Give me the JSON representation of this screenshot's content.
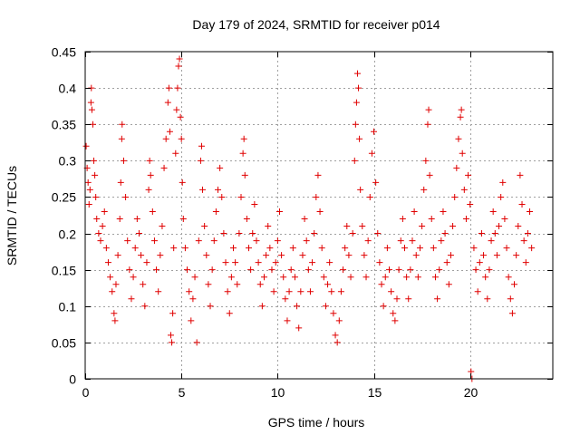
{
  "chart_data": {
    "type": "scatter",
    "title": "Day 179 of 2024, SRMTID for receiver p014",
    "xlabel": "GPS time / hours",
    "ylabel": "SRMTID / TECUs",
    "xlim": [
      0,
      24.3
    ],
    "ylim": [
      0,
      0.45
    ],
    "grid": true,
    "marker": "+",
    "color": "#e00000",
    "x_ticks": [
      0,
      5,
      10,
      15,
      20
    ],
    "y_ticks": [
      0,
      0.05,
      0.1,
      0.15,
      0.2,
      0.25,
      0.3,
      0.35,
      0.4,
      0.45
    ],
    "x_tick_labels": [
      "0",
      "5",
      "10",
      "15",
      "20"
    ],
    "y_tick_labels": [
      "0",
      "0.05",
      "0.1",
      "0.15",
      "0.2",
      "0.25",
      "0.3",
      "0.35",
      "0.4",
      "0.45"
    ],
    "series": [
      {
        "name": "p014",
        "points": [
          [
            0.05,
            0.32
          ],
          [
            0.1,
            0.29
          ],
          [
            0.15,
            0.27
          ],
          [
            0.2,
            0.24
          ],
          [
            0.25,
            0.26
          ],
          [
            0.3,
            0.38
          ],
          [
            0.32,
            0.4
          ],
          [
            0.35,
            0.37
          ],
          [
            0.4,
            0.35
          ],
          [
            0.45,
            0.3
          ],
          [
            0.5,
            0.28
          ],
          [
            0.55,
            0.25
          ],
          [
            0.6,
            0.22
          ],
          [
            0.7,
            0.2
          ],
          [
            0.8,
            0.19
          ],
          [
            0.9,
            0.21
          ],
          [
            1.0,
            0.23
          ],
          [
            1.1,
            0.18
          ],
          [
            1.2,
            0.16
          ],
          [
            1.3,
            0.14
          ],
          [
            1.4,
            0.12
          ],
          [
            1.5,
            0.09
          ],
          [
            1.55,
            0.08
          ],
          [
            1.6,
            0.13
          ],
          [
            1.7,
            0.17
          ],
          [
            1.8,
            0.22
          ],
          [
            1.85,
            0.27
          ],
          [
            1.9,
            0.33
          ],
          [
            1.92,
            0.35
          ],
          [
            2.0,
            0.3
          ],
          [
            2.1,
            0.25
          ],
          [
            2.2,
            0.19
          ],
          [
            2.3,
            0.15
          ],
          [
            2.4,
            0.11
          ],
          [
            2.5,
            0.14
          ],
          [
            2.6,
            0.18
          ],
          [
            2.7,
            0.22
          ],
          [
            2.8,
            0.2
          ],
          [
            2.9,
            0.17
          ],
          [
            3.0,
            0.13
          ],
          [
            3.1,
            0.1
          ],
          [
            3.2,
            0.16
          ],
          [
            3.3,
            0.26
          ],
          [
            3.35,
            0.3
          ],
          [
            3.4,
            0.28
          ],
          [
            3.5,
            0.23
          ],
          [
            3.6,
            0.19
          ],
          [
            3.7,
            0.15
          ],
          [
            3.8,
            0.12
          ],
          [
            3.9,
            0.17
          ],
          [
            4.0,
            0.21
          ],
          [
            4.1,
            0.29
          ],
          [
            4.2,
            0.33
          ],
          [
            4.3,
            0.38
          ],
          [
            4.35,
            0.4
          ],
          [
            4.4,
            0.34
          ],
          [
            4.45,
            0.06
          ],
          [
            4.5,
            0.05
          ],
          [
            4.55,
            0.09
          ],
          [
            4.6,
            0.18
          ],
          [
            4.7,
            0.31
          ],
          [
            4.75,
            0.37
          ],
          [
            4.8,
            0.4
          ],
          [
            4.85,
            0.43
          ],
          [
            4.9,
            0.44
          ],
          [
            4.95,
            0.36
          ],
          [
            5.0,
            0.33
          ],
          [
            5.05,
            0.27
          ],
          [
            5.1,
            0.22
          ],
          [
            5.2,
            0.18
          ],
          [
            5.3,
            0.15
          ],
          [
            5.4,
            0.12
          ],
          [
            5.5,
            0.08
          ],
          [
            5.6,
            0.11
          ],
          [
            5.7,
            0.14
          ],
          [
            5.8,
            0.05
          ],
          [
            5.9,
            0.19
          ],
          [
            6.0,
            0.3
          ],
          [
            6.05,
            0.32
          ],
          [
            6.1,
            0.26
          ],
          [
            6.2,
            0.21
          ],
          [
            6.3,
            0.17
          ],
          [
            6.4,
            0.13
          ],
          [
            6.5,
            0.1
          ],
          [
            6.6,
            0.15
          ],
          [
            6.7,
            0.19
          ],
          [
            6.8,
            0.23
          ],
          [
            6.9,
            0.26
          ],
          [
            7.0,
            0.29
          ],
          [
            7.1,
            0.25
          ],
          [
            7.2,
            0.2
          ],
          [
            7.3,
            0.16
          ],
          [
            7.4,
            0.12
          ],
          [
            7.5,
            0.09
          ],
          [
            7.6,
            0.14
          ],
          [
            7.7,
            0.18
          ],
          [
            7.8,
            0.16
          ],
          [
            7.9,
            0.13
          ],
          [
            8.0,
            0.2
          ],
          [
            8.1,
            0.25
          ],
          [
            8.2,
            0.31
          ],
          [
            8.25,
            0.33
          ],
          [
            8.3,
            0.28
          ],
          [
            8.4,
            0.22
          ],
          [
            8.5,
            0.18
          ],
          [
            8.6,
            0.15
          ],
          [
            8.7,
            0.2
          ],
          [
            8.8,
            0.24
          ],
          [
            8.9,
            0.19
          ],
          [
            9.0,
            0.16
          ],
          [
            9.1,
            0.13
          ],
          [
            9.2,
            0.1
          ],
          [
            9.3,
            0.14
          ],
          [
            9.4,
            0.17
          ],
          [
            9.5,
            0.21
          ],
          [
            9.6,
            0.18
          ],
          [
            9.7,
            0.15
          ],
          [
            9.8,
            0.12
          ],
          [
            9.9,
            0.16
          ],
          [
            10.0,
            0.19
          ],
          [
            10.1,
            0.23
          ],
          [
            10.2,
            0.17
          ],
          [
            10.3,
            0.14
          ],
          [
            10.4,
            0.11
          ],
          [
            10.5,
            0.08
          ],
          [
            10.6,
            0.12
          ],
          [
            10.7,
            0.15
          ],
          [
            10.8,
            0.18
          ],
          [
            10.9,
            0.14
          ],
          [
            11.0,
            0.1
          ],
          [
            11.1,
            0.07
          ],
          [
            11.2,
            0.12
          ],
          [
            11.3,
            0.17
          ],
          [
            11.4,
            0.22
          ],
          [
            11.5,
            0.19
          ],
          [
            11.6,
            0.15
          ],
          [
            11.7,
            0.12
          ],
          [
            11.8,
            0.16
          ],
          [
            11.9,
            0.2
          ],
          [
            12.0,
            0.25
          ],
          [
            12.1,
            0.28
          ],
          [
            12.2,
            0.23
          ],
          [
            12.3,
            0.18
          ],
          [
            12.4,
            0.14
          ],
          [
            12.5,
            0.1
          ],
          [
            12.6,
            0.13
          ],
          [
            12.7,
            0.16
          ],
          [
            12.8,
            0.12
          ],
          [
            12.9,
            0.09
          ],
          [
            13.0,
            0.06
          ],
          [
            13.1,
            0.05
          ],
          [
            13.2,
            0.08
          ],
          [
            13.3,
            0.12
          ],
          [
            13.4,
            0.15
          ],
          [
            13.5,
            0.18
          ],
          [
            13.6,
            0.21
          ],
          [
            13.7,
            0.17
          ],
          [
            13.8,
            0.14
          ],
          [
            13.9,
            0.2
          ],
          [
            14.0,
            0.3
          ],
          [
            14.05,
            0.35
          ],
          [
            14.1,
            0.38
          ],
          [
            14.15,
            0.42
          ],
          [
            14.2,
            0.4
          ],
          [
            14.25,
            0.33
          ],
          [
            14.3,
            0.26
          ],
          [
            14.4,
            0.21
          ],
          [
            14.5,
            0.17
          ],
          [
            14.6,
            0.14
          ],
          [
            14.7,
            0.19
          ],
          [
            14.8,
            0.25
          ],
          [
            14.9,
            0.31
          ],
          [
            15.0,
            0.34
          ],
          [
            15.1,
            0.27
          ],
          [
            15.2,
            0.2
          ],
          [
            15.3,
            0.16
          ],
          [
            15.4,
            0.13
          ],
          [
            15.5,
            0.1
          ],
          [
            15.6,
            0.14
          ],
          [
            15.7,
            0.18
          ],
          [
            15.8,
            0.15
          ],
          [
            15.9,
            0.12
          ],
          [
            16.0,
            0.09
          ],
          [
            16.1,
            0.08
          ],
          [
            16.2,
            0.11
          ],
          [
            16.3,
            0.15
          ],
          [
            16.4,
            0.19
          ],
          [
            16.5,
            0.22
          ],
          [
            16.6,
            0.18
          ],
          [
            16.7,
            0.14
          ],
          [
            16.8,
            0.11
          ],
          [
            16.9,
            0.15
          ],
          [
            17.0,
            0.19
          ],
          [
            17.1,
            0.23
          ],
          [
            17.2,
            0.17
          ],
          [
            17.3,
            0.14
          ],
          [
            17.4,
            0.18
          ],
          [
            17.5,
            0.21
          ],
          [
            17.6,
            0.26
          ],
          [
            17.7,
            0.3
          ],
          [
            17.8,
            0.35
          ],
          [
            17.85,
            0.37
          ],
          [
            17.9,
            0.28
          ],
          [
            18.0,
            0.22
          ],
          [
            18.1,
            0.18
          ],
          [
            18.2,
            0.14
          ],
          [
            18.3,
            0.11
          ],
          [
            18.4,
            0.15
          ],
          [
            18.5,
            0.19
          ],
          [
            18.6,
            0.23
          ],
          [
            18.7,
            0.2
          ],
          [
            18.8,
            0.16
          ],
          [
            18.9,
            0.13
          ],
          [
            19.0,
            0.17
          ],
          [
            19.1,
            0.21
          ],
          [
            19.2,
            0.25
          ],
          [
            19.3,
            0.29
          ],
          [
            19.4,
            0.33
          ],
          [
            19.5,
            0.36
          ],
          [
            19.55,
            0.37
          ],
          [
            19.6,
            0.31
          ],
          [
            19.7,
            0.26
          ],
          [
            19.8,
            0.22
          ],
          [
            19.9,
            0.28
          ],
          [
            20.0,
            0.24
          ],
          [
            20.05,
            0.01
          ],
          [
            20.1,
            0.0
          ],
          [
            20.2,
            0.18
          ],
          [
            20.3,
            0.15
          ],
          [
            20.4,
            0.12
          ],
          [
            20.5,
            0.16
          ],
          [
            20.6,
            0.2
          ],
          [
            20.7,
            0.17
          ],
          [
            20.8,
            0.14
          ],
          [
            20.9,
            0.11
          ],
          [
            21.0,
            0.15
          ],
          [
            21.1,
            0.19
          ],
          [
            21.2,
            0.23
          ],
          [
            21.3,
            0.2
          ],
          [
            21.4,
            0.17
          ],
          [
            21.5,
            0.21
          ],
          [
            21.6,
            0.25
          ],
          [
            21.7,
            0.27
          ],
          [
            21.8,
            0.22
          ],
          [
            21.9,
            0.18
          ],
          [
            22.0,
            0.14
          ],
          [
            22.1,
            0.11
          ],
          [
            22.2,
            0.09
          ],
          [
            22.3,
            0.13
          ],
          [
            22.4,
            0.17
          ],
          [
            22.5,
            0.21
          ],
          [
            22.6,
            0.28
          ],
          [
            22.7,
            0.24
          ],
          [
            22.8,
            0.19
          ],
          [
            22.9,
            0.16
          ],
          [
            23.0,
            0.2
          ],
          [
            23.1,
            0.23
          ],
          [
            23.2,
            0.18
          ]
        ]
      }
    ]
  }
}
